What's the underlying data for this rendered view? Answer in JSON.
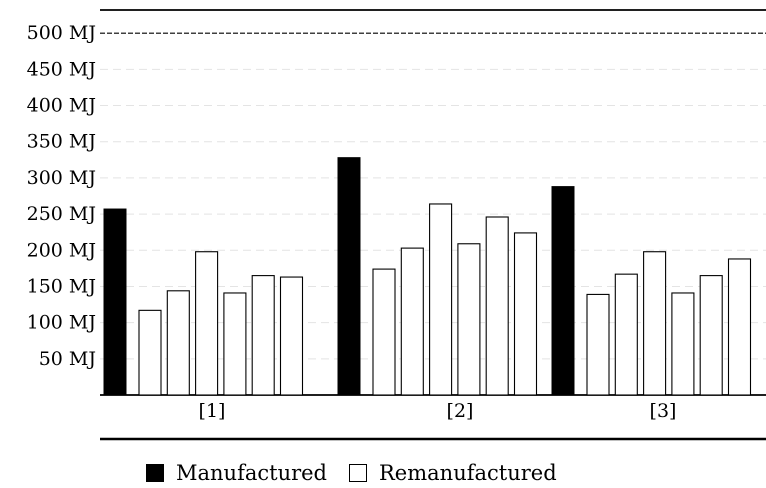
{
  "chart_data": {
    "type": "bar",
    "title": "",
    "xlabel": "",
    "ylabel": "",
    "ylim": [
      0,
      500
    ],
    "yticks": [
      "50 MJ",
      "100 MJ",
      "150 MJ",
      "200 MJ",
      "250 MJ",
      "300 MJ",
      "350 MJ",
      "400 MJ",
      "450 MJ",
      "500 MJ"
    ],
    "ytick_values": [
      50,
      100,
      150,
      200,
      250,
      300,
      350,
      400,
      450,
      500
    ],
    "grid": true,
    "reference_line": 500,
    "legend_placement": "bottom",
    "categories": [
      "[1]",
      "[2]",
      "[3]"
    ],
    "series": [
      {
        "name": "Manufactured",
        "color": "#000000",
        "values": [
          [
            257
          ],
          [
            328
          ],
          [
            288
          ]
        ]
      },
      {
        "name": "Remanufactured",
        "color": "#ffffff",
        "values": [
          [
            117,
            144,
            198,
            141,
            165,
            163
          ],
          [
            174,
            203,
            264,
            209,
            246,
            224
          ],
          [
            139,
            167,
            198,
            141,
            165,
            188
          ]
        ]
      }
    ]
  },
  "legend": {
    "manufactured_label": "Manufactured",
    "remanufactured_label": "Remanufactured"
  }
}
